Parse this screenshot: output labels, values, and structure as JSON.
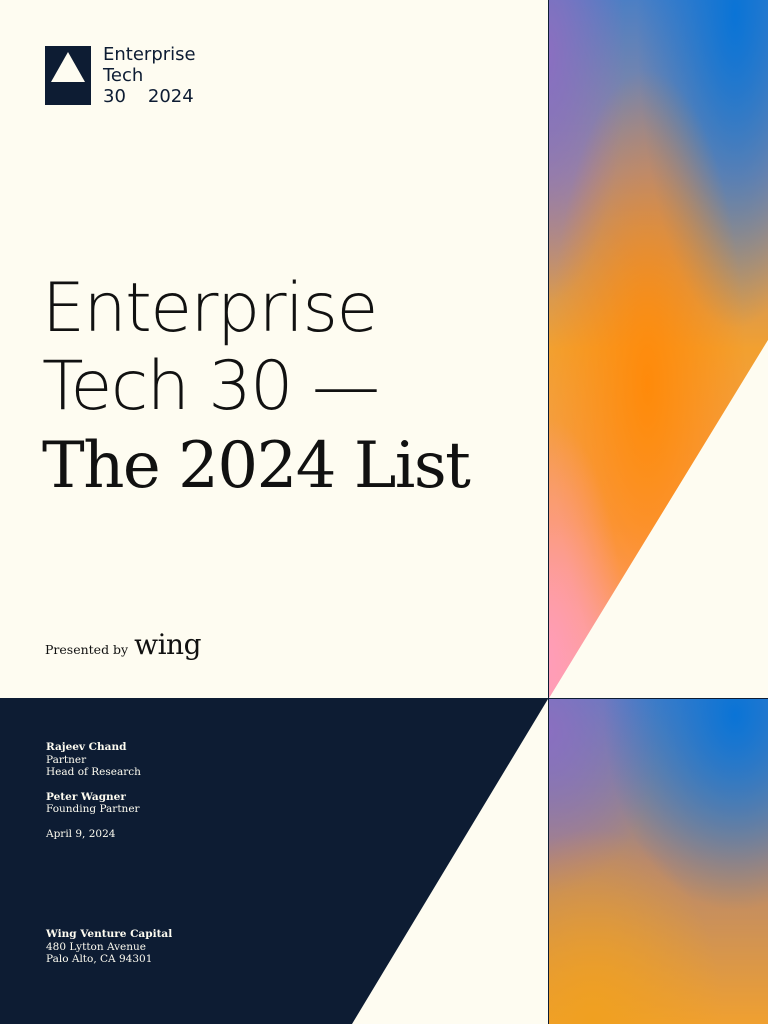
{
  "logo": {
    "icon": "triangle-logo-icon",
    "line1": "Enterprise",
    "line2": "Tech",
    "number": "30",
    "year": "2024"
  },
  "title": {
    "line1": "Enterprise",
    "line2": "Tech 30 —",
    "line3": "The 2024 List"
  },
  "presented": {
    "label": "Presented by",
    "brand": "wing"
  },
  "authors": [
    {
      "name": "Rajeev Chand",
      "roles": [
        "Partner",
        "Head of Research"
      ]
    },
    {
      "name": "Peter Wagner",
      "roles": [
        "Founding Partner"
      ]
    }
  ],
  "date": "April 9, 2024",
  "company": {
    "name": "Wing Venture Capital",
    "street": "480 Lytton Avenue",
    "city": "Palo Alto, CA 94301"
  },
  "colors": {
    "navy": "#0d1c33",
    "cream": "#fefcf1",
    "gradient_blue": "#1e7fd0",
    "gradient_orange": "#ff8a10",
    "gradient_pink": "#ff9fb0"
  }
}
